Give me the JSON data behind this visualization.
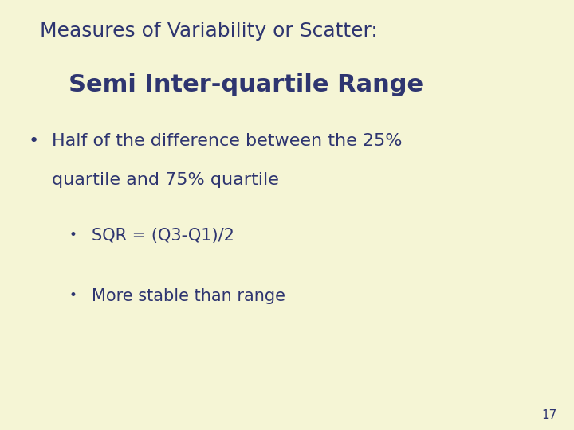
{
  "background_color": "#f5f5d5",
  "title_line1": "Measures of Variability or Scatter:",
  "title_line2": "Semi Inter-quartile Range",
  "text_color": "#2e3570",
  "bullet1_line1": "Half of the difference between the 25%",
  "bullet1_line2": "quartile and 75% quartile",
  "sub_bullet1": "SQR = (Q3-Q1)/2",
  "sub_bullet2": "More stable than range",
  "page_number": "17",
  "title_line1_fontsize": 18,
  "title_line2_fontsize": 22,
  "bullet_fontsize": 16,
  "sub_bullet_fontsize": 15,
  "page_num_fontsize": 11
}
